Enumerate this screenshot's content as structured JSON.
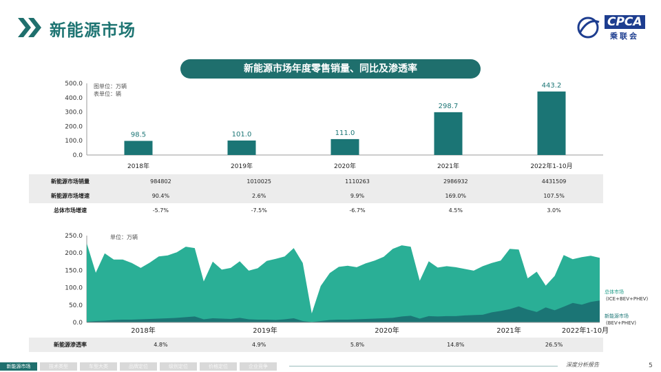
{
  "page": {
    "title": "新能源市场",
    "number": "5",
    "footer_note": "深度分析报告"
  },
  "logo": {
    "text": "CPCA",
    "sub": "乘联会"
  },
  "nav": {
    "items": [
      "新能源市场",
      "技术类型",
      "车型大类",
      "品牌定位",
      "级别定位",
      "价格定位",
      "企业竞争"
    ],
    "active": 0
  },
  "colors": {
    "bar": "#1b7575",
    "total_area": "#2aaf96",
    "nev_area": "#1b7575",
    "title_pill": "#1f6f6d"
  },
  "chart_data": [
    {
      "type": "bar",
      "title": "新能源市场年度零售销量、同比及渗透率",
      "unit_notes": [
        "图单位：万辆",
        "表单位：辆"
      ],
      "categories": [
        "2018年",
        "2019年",
        "2020年",
        "2021年",
        "2022年1-10月"
      ],
      "values": [
        98.5,
        101.0,
        111.0,
        298.7,
        443.2
      ],
      "value_labels": [
        "98.5",
        "101.0",
        "111.0",
        "298.7",
        "443.2"
      ],
      "ylim": [
        0,
        500
      ],
      "yticks": [
        "0.0",
        "100.0",
        "200.0",
        "300.0",
        "400.0",
        "500.0"
      ],
      "table": {
        "rows": [
          {
            "label": "新能源市场销量",
            "values": [
              "984802",
              "1010025",
              "1110263",
              "2986932",
              "4431509"
            ]
          },
          {
            "label": "新能源市场增速",
            "values": [
              "90.4%",
              "2.6%",
              "9.9%",
              "169.0%",
              "107.5%"
            ]
          },
          {
            "label": "总体市场增速",
            "values": [
              "-5.7%",
              "-7.5%",
              "-6.7%",
              "4.5%",
              "3.0%"
            ]
          }
        ]
      }
    },
    {
      "type": "area",
      "unit_note": "单位：万辆",
      "ylim": [
        0,
        250
      ],
      "yticks": [
        "0.0",
        "50.0",
        "100.0",
        "150.0",
        "200.0",
        "250.0"
      ],
      "year_labels": [
        "2018年",
        "2019年",
        "2020年",
        "2021年",
        "2022年1-10月"
      ],
      "series": [
        {
          "name": "总体市场",
          "sub": "(ICE+BEV+PHEV)",
          "values": [
            228,
            143,
            199,
            181,
            181,
            171,
            157,
            172,
            190,
            193,
            202,
            218,
            214,
            118,
            175,
            152,
            157,
            176,
            149,
            156,
            177,
            183,
            190,
            214,
            171,
            26,
            105,
            142,
            160,
            163,
            159,
            170,
            178,
            189,
            212,
            222,
            218,
            120,
            176,
            158,
            162,
            159,
            154,
            149,
            162,
            171,
            178,
            212,
            210,
            127,
            146,
            106,
            134,
            194,
            182,
            188,
            192,
            186
          ],
          "color": "#2aaf96"
        },
        {
          "name": "新能源市场",
          "sub": "(BEV+PHEV)",
          "values": [
            2,
            4,
            5,
            7,
            8,
            8,
            9,
            10,
            11,
            12,
            13,
            15,
            17,
            9,
            12,
            11,
            10,
            13,
            9,
            8,
            8,
            7,
            9,
            12,
            4,
            1,
            4,
            7,
            8,
            8,
            9,
            10,
            11,
            12,
            13,
            17,
            19,
            11,
            18,
            17,
            18,
            18,
            20,
            21,
            22,
            29,
            33,
            38,
            46,
            37,
            30,
            43,
            35,
            45,
            56,
            51,
            59,
            63
          ],
          "color": "#1b7575"
        }
      ],
      "table": {
        "label": "新能源渗透率",
        "values": [
          "4.8%",
          "4.9%",
          "5.8%",
          "14.8%",
          "26.5%"
        ]
      }
    }
  ]
}
